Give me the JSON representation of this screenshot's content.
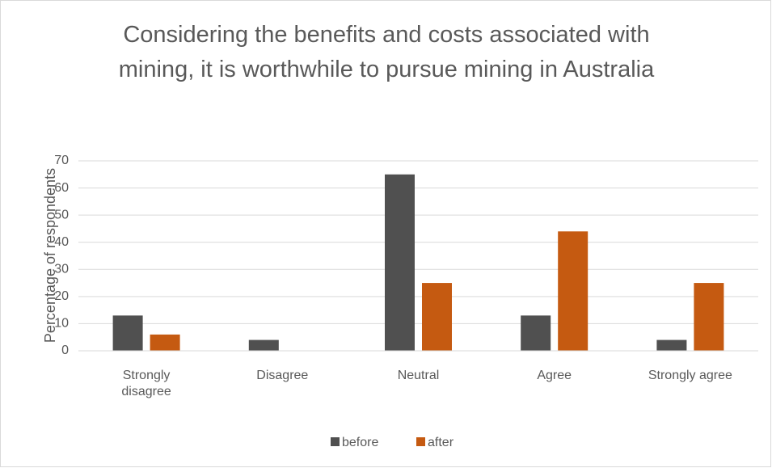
{
  "chart_data": {
    "type": "bar",
    "title": "Considering the benefits and costs associated with mining, it is worthwhile to pursue mining in Australia",
    "y_label": "Percentage of respondents",
    "categories": [
      "Strongly disagree",
      "Disagree",
      "Neutral",
      "Agree",
      "Strongly agree"
    ],
    "series": [
      {
        "name": "before",
        "color": "#505050",
        "values": [
          13,
          4,
          65,
          13,
          4
        ]
      },
      {
        "name": "after",
        "color": "#c55a11",
        "values": [
          6,
          0,
          25,
          44,
          25
        ]
      }
    ],
    "ylim": [
      0,
      70
    ],
    "yticks": [
      0,
      10,
      20,
      30,
      40,
      50,
      60,
      70
    ],
    "grid": true,
    "legend": "bottom"
  }
}
